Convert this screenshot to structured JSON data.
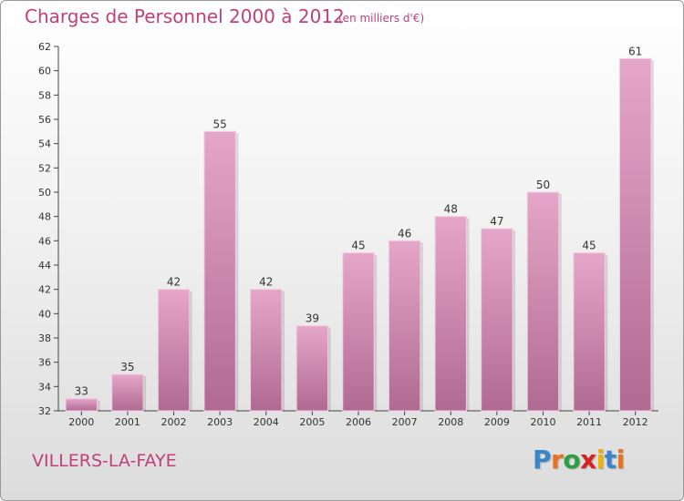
{
  "header": {
    "title": "Charges de Personnel 2000 à 2012",
    "subtitle": "(en milliers d'€)"
  },
  "footer": {
    "commune": "VILLERS-LA-FAYE",
    "logo": {
      "letters": [
        "P",
        "r",
        "o",
        "x",
        "i",
        "t",
        "i"
      ],
      "colors": [
        "#3a86c8",
        "#e8731a",
        "#2e9e44",
        "#d8231f",
        "#f0b400",
        "#3a86c8",
        "#e8731a"
      ]
    }
  },
  "chart_data": {
    "type": "bar",
    "categories": [
      "2000",
      "2001",
      "2002",
      "2003",
      "2004",
      "2005",
      "2006",
      "2007",
      "2008",
      "2009",
      "2010",
      "2011",
      "2012"
    ],
    "values": [
      33,
      35,
      42,
      55,
      42,
      39,
      45,
      46,
      48,
      47,
      50,
      45,
      61
    ],
    "ylim": [
      32,
      62
    ],
    "yticks": [
      32,
      34,
      36,
      38,
      40,
      42,
      44,
      46,
      48,
      50,
      52,
      54,
      56,
      58,
      60,
      62
    ],
    "grid": false,
    "legend": "none",
    "bar_color": "#d67fab"
  }
}
